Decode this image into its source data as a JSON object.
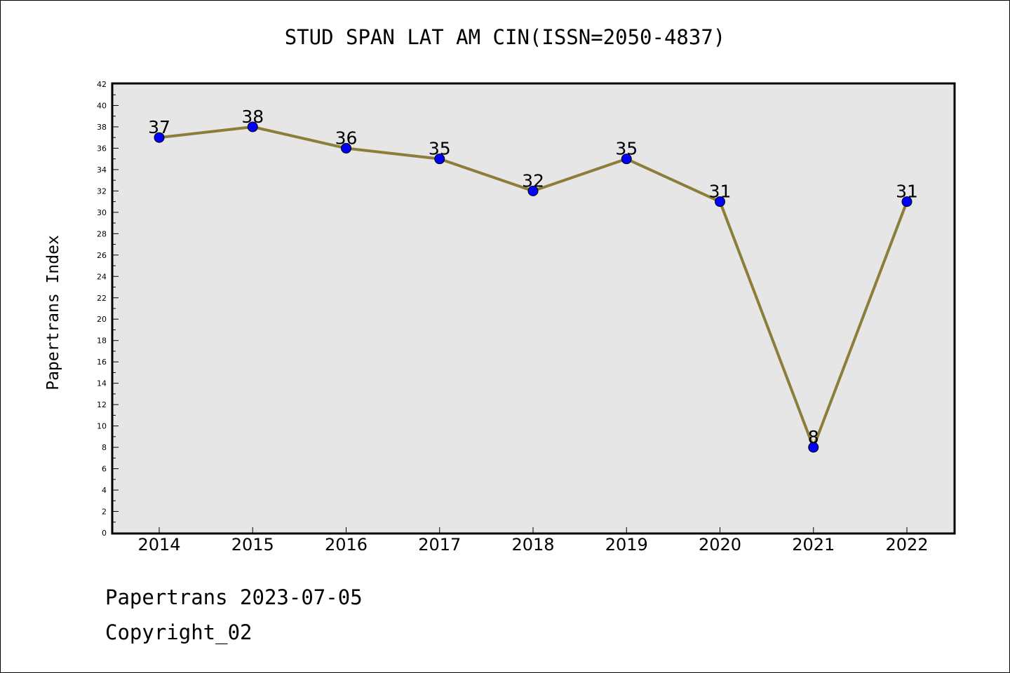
{
  "chart_data": {
    "type": "line",
    "title": "STUD SPAN LAT AM CIN(ISSN=2050-4837)",
    "xlabel": "",
    "ylabel": "Papertrans Index",
    "categories": [
      "2014",
      "2015",
      "2016",
      "2017",
      "2018",
      "2019",
      "2020",
      "2021",
      "2022"
    ],
    "values": [
      37,
      38,
      36,
      35,
      32,
      35,
      31,
      8,
      31
    ],
    "ylim": [
      0,
      42
    ],
    "ytick_step": 2,
    "data_labels": [
      "37",
      "38",
      "36",
      "35",
      "32",
      "35",
      "31",
      "8",
      "31"
    ],
    "grid": false,
    "colors": {
      "line": "#8b7d3a",
      "marker": "#0000ff",
      "plot_background": "#e6e6e6"
    }
  },
  "footer": {
    "line1": "Papertrans 2023-07-05",
    "line2": "Copyright_02"
  }
}
